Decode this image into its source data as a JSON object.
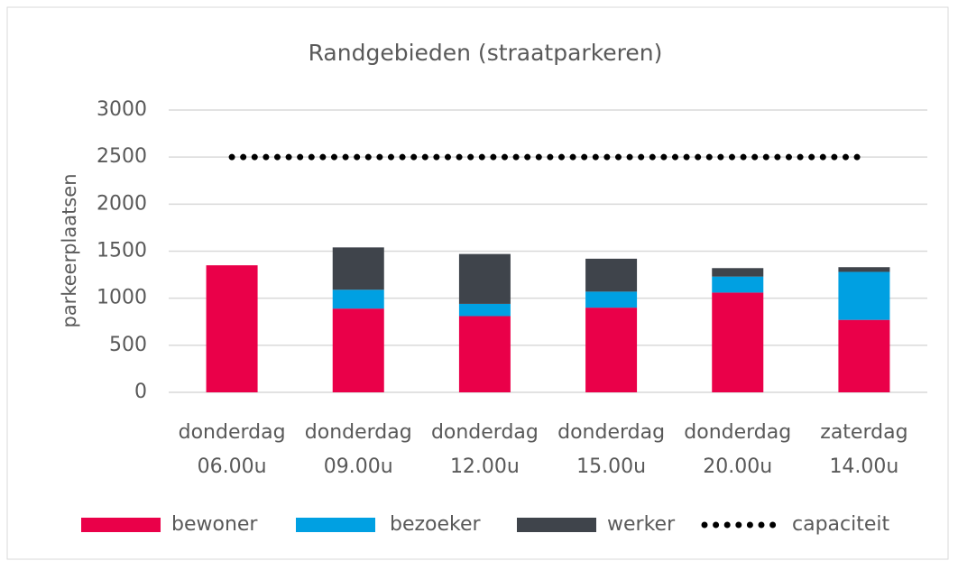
{
  "chart_data": {
    "type": "bar",
    "stacked": true,
    "title": "Randgebieden (straatparkeren)",
    "y_label": "parkeerplaatsen",
    "categories": [
      [
        "donderdag",
        "06.00u"
      ],
      [
        "donderdag",
        "09.00u"
      ],
      [
        "donderdag",
        "12.00u"
      ],
      [
        "donderdag",
        "15.00u"
      ],
      [
        "donderdag",
        "20.00u"
      ],
      [
        "zaterdag",
        "14.00u"
      ]
    ],
    "series": [
      {
        "name": "bewoner",
        "color": "#ea0049",
        "values": [
          1350,
          890,
          810,
          900,
          1060,
          770
        ]
      },
      {
        "name": "bezoeker",
        "color": "#00a0e2",
        "values": [
          0,
          200,
          130,
          170,
          170,
          510
        ]
      },
      {
        "name": "werker",
        "color": "#3f444b",
        "values": [
          0,
          450,
          530,
          350,
          90,
          50
        ]
      },
      {
        "name": "capaciteit",
        "type": "line",
        "style": "dotted",
        "color": "#000000",
        "values": [
          2500,
          2500,
          2500,
          2500,
          2500,
          2500
        ]
      }
    ],
    "ylim": [
      0,
      3000
    ],
    "yticks": [
      0,
      500,
      1000,
      1500,
      2000,
      2500,
      3000
    ],
    "grid": true,
    "legend": "bottom"
  }
}
